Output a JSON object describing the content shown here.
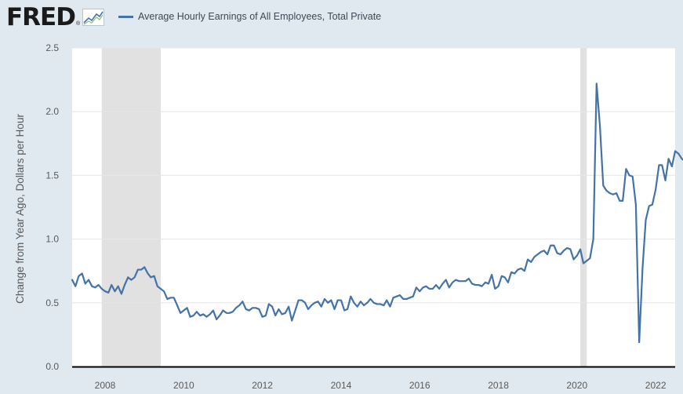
{
  "header": {
    "logo_text": "FRED",
    "logo_mark": "®",
    "logo_icon": "line-graph-icon"
  },
  "colors": {
    "series": "#4572a7",
    "recession": "#e1e1e1",
    "plot_background": "#ffffff",
    "page_background": "#e1e9f0",
    "gridline": "#e6e6e6"
  },
  "chart_data": {
    "type": "line",
    "title": "",
    "xlabel": "",
    "ylabel": "Change from Year Ago, Dollars per Hour",
    "ylim": [
      0,
      2.5
    ],
    "xlim": [
      "2007-03-01",
      "2022-07-01"
    ],
    "yticks": [
      "0.0",
      "0.5",
      "1.0",
      "1.5",
      "2.0",
      "2.5"
    ],
    "xticks": [
      "2008",
      "2010",
      "2012",
      "2014",
      "2016",
      "2018",
      "2020",
      "2022"
    ],
    "grid": "horizontal",
    "legend_position": "top-left",
    "recessions": [
      {
        "start": "2007-12-01",
        "end": "2009-06-01"
      },
      {
        "start": "2020-02-01",
        "end": "2020-04-01"
      }
    ],
    "series": [
      {
        "name": "Average Hourly Earnings of All Employees, Total Private",
        "start": "2007-03-01",
        "frequency": "monthly",
        "values": [
          0.68,
          0.63,
          0.71,
          0.73,
          0.65,
          0.68,
          0.63,
          0.62,
          0.64,
          0.61,
          0.59,
          0.58,
          0.64,
          0.59,
          0.63,
          0.57,
          0.64,
          0.7,
          0.68,
          0.7,
          0.76,
          0.76,
          0.78,
          0.73,
          0.7,
          0.71,
          0.63,
          0.61,
          0.59,
          0.53,
          0.54,
          0.54,
          0.48,
          0.42,
          0.44,
          0.46,
          0.39,
          0.4,
          0.43,
          0.4,
          0.41,
          0.39,
          0.41,
          0.44,
          0.37,
          0.4,
          0.44,
          0.42,
          0.42,
          0.43,
          0.46,
          0.48,
          0.51,
          0.45,
          0.44,
          0.46,
          0.46,
          0.45,
          0.39,
          0.4,
          0.49,
          0.47,
          0.4,
          0.45,
          0.41,
          0.42,
          0.47,
          0.36,
          0.44,
          0.52,
          0.52,
          0.5,
          0.45,
          0.48,
          0.5,
          0.51,
          0.47,
          0.53,
          0.5,
          0.52,
          0.45,
          0.52,
          0.52,
          0.44,
          0.45,
          0.55,
          0.5,
          0.47,
          0.51,
          0.48,
          0.5,
          0.53,
          0.5,
          0.49,
          0.49,
          0.48,
          0.52,
          0.47,
          0.54,
          0.55,
          0.56,
          0.53,
          0.53,
          0.54,
          0.55,
          0.62,
          0.59,
          0.62,
          0.63,
          0.61,
          0.61,
          0.64,
          0.61,
          0.65,
          0.68,
          0.62,
          0.66,
          0.68,
          0.67,
          0.67,
          0.67,
          0.69,
          0.65,
          0.64,
          0.64,
          0.63,
          0.66,
          0.65,
          0.72,
          0.61,
          0.63,
          0.71,
          0.7,
          0.66,
          0.74,
          0.73,
          0.76,
          0.77,
          0.75,
          0.84,
          0.82,
          0.86,
          0.88,
          0.9,
          0.91,
          0.88,
          0.95,
          0.95,
          0.89,
          0.88,
          0.91,
          0.93,
          0.92,
          0.84,
          0.87,
          0.92,
          0.81,
          0.83,
          0.85,
          1.0,
          2.22,
          1.89,
          1.42,
          1.38,
          1.36,
          1.35,
          1.36,
          1.3,
          1.3,
          1.55,
          1.5,
          1.49,
          1.27,
          0.19,
          0.77,
          1.15,
          1.26,
          1.27,
          1.39,
          1.58,
          1.58,
          1.46,
          1.63,
          1.57,
          1.69,
          1.67,
          1.63,
          1.61,
          1.6,
          1.6
        ]
      }
    ]
  }
}
